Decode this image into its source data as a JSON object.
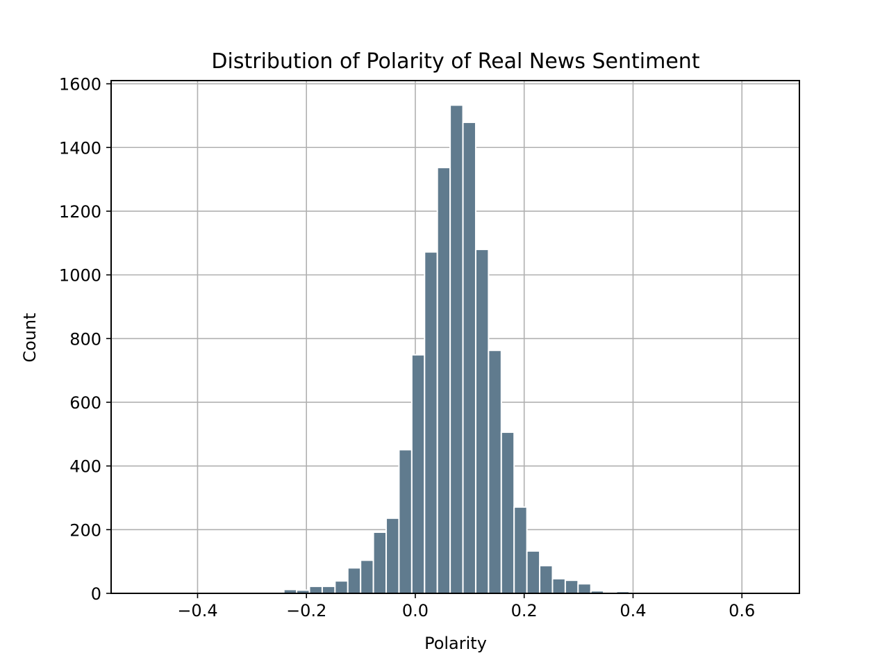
{
  "chart_data": {
    "type": "bar",
    "title": "Distribution of Polarity of Real News Sentiment",
    "xlabel": "Polarity",
    "ylabel": "Count",
    "xlim": [
      -0.5588,
      0.7056
    ],
    "ylim": [
      0,
      1610
    ],
    "grid": true,
    "bar_color": "#607b8e",
    "x_ticks": [
      {
        "value": -0.4,
        "label": "−0.4"
      },
      {
        "value": -0.2,
        "label": "−0.2"
      },
      {
        "value": 0.0,
        "label": "0.0"
      },
      {
        "value": 0.2,
        "label": "0.2"
      },
      {
        "value": 0.4,
        "label": "0.4"
      },
      {
        "value": 0.6,
        "label": "0.6"
      }
    ],
    "y_ticks": [
      {
        "value": 0,
        "label": "0"
      },
      {
        "value": 200,
        "label": "200"
      },
      {
        "value": 400,
        "label": "400"
      },
      {
        "value": 600,
        "label": "600"
      },
      {
        "value": 800,
        "label": "800"
      },
      {
        "value": 1000,
        "label": "1000"
      },
      {
        "value": 1200,
        "label": "1200"
      },
      {
        "value": 1400,
        "label": "1400"
      },
      {
        "value": 1600,
        "label": "1600"
      }
    ],
    "bins": [
      {
        "x0": -0.5,
        "x1": -0.4765,
        "count": 0
      },
      {
        "x0": -0.4765,
        "x1": -0.453,
        "count": 0
      },
      {
        "x0": -0.453,
        "x1": -0.4295,
        "count": 0
      },
      {
        "x0": -0.4295,
        "x1": -0.406,
        "count": 0
      },
      {
        "x0": -0.406,
        "x1": -0.3825,
        "count": 0
      },
      {
        "x0": -0.3825,
        "x1": -0.359,
        "count": 0
      },
      {
        "x0": -0.359,
        "x1": -0.3355,
        "count": 0
      },
      {
        "x0": -0.3355,
        "x1": -0.312,
        "count": 0
      },
      {
        "x0": -0.312,
        "x1": -0.2885,
        "count": 0
      },
      {
        "x0": -0.2885,
        "x1": -0.265,
        "count": 3
      },
      {
        "x0": -0.265,
        "x1": -0.2415,
        "count": 0
      },
      {
        "x0": -0.2415,
        "x1": -0.218,
        "count": 12
      },
      {
        "x0": -0.218,
        "x1": -0.1945,
        "count": 10
      },
      {
        "x0": -0.1945,
        "x1": -0.171,
        "count": 22
      },
      {
        "x0": -0.171,
        "x1": -0.1475,
        "count": 22
      },
      {
        "x0": -0.1475,
        "x1": -0.124,
        "count": 39
      },
      {
        "x0": -0.124,
        "x1": -0.1005,
        "count": 80
      },
      {
        "x0": -0.1005,
        "x1": -0.077,
        "count": 104
      },
      {
        "x0": -0.077,
        "x1": -0.0535,
        "count": 192
      },
      {
        "x0": -0.0535,
        "x1": -0.03,
        "count": 236
      },
      {
        "x0": -0.03,
        "x1": -0.0065,
        "count": 451
      },
      {
        "x0": -0.0065,
        "x1": 0.017,
        "count": 749
      },
      {
        "x0": 0.017,
        "x1": 0.0405,
        "count": 1072
      },
      {
        "x0": 0.0405,
        "x1": 0.064,
        "count": 1337
      },
      {
        "x0": 0.064,
        "x1": 0.0875,
        "count": 1533
      },
      {
        "x0": 0.0875,
        "x1": 0.111,
        "count": 1479
      },
      {
        "x0": 0.111,
        "x1": 0.1345,
        "count": 1080
      },
      {
        "x0": 0.1345,
        "x1": 0.158,
        "count": 763
      },
      {
        "x0": 0.158,
        "x1": 0.1815,
        "count": 506
      },
      {
        "x0": 0.1815,
        "x1": 0.205,
        "count": 271
      },
      {
        "x0": 0.205,
        "x1": 0.2285,
        "count": 133
      },
      {
        "x0": 0.2285,
        "x1": 0.252,
        "count": 87
      },
      {
        "x0": 0.252,
        "x1": 0.2755,
        "count": 46
      },
      {
        "x0": 0.2755,
        "x1": 0.299,
        "count": 41
      },
      {
        "x0": 0.299,
        "x1": 0.3225,
        "count": 30
      },
      {
        "x0": 0.3225,
        "x1": 0.346,
        "count": 8
      },
      {
        "x0": 0.346,
        "x1": 0.3695,
        "count": 4
      },
      {
        "x0": 0.3695,
        "x1": 0.393,
        "count": 6
      },
      {
        "x0": 0.393,
        "x1": 0.4165,
        "count": 1
      },
      {
        "x0": 0.4165,
        "x1": 0.44,
        "count": 2
      },
      {
        "x0": 0.44,
        "x1": 0.4635,
        "count": 3
      },
      {
        "x0": 0.4635,
        "x1": 0.487,
        "count": 0
      },
      {
        "x0": 0.487,
        "x1": 0.5105,
        "count": 0
      },
      {
        "x0": 0.5105,
        "x1": 0.534,
        "count": 0
      },
      {
        "x0": 0.534,
        "x1": 0.5575,
        "count": 0
      },
      {
        "x0": 0.5575,
        "x1": 0.581,
        "count": 0
      },
      {
        "x0": 0.581,
        "x1": 0.6045,
        "count": 0
      },
      {
        "x0": 0.6045,
        "x1": 0.628,
        "count": 0
      },
      {
        "x0": 0.628,
        "x1": 0.6515,
        "count": 0
      }
    ]
  }
}
